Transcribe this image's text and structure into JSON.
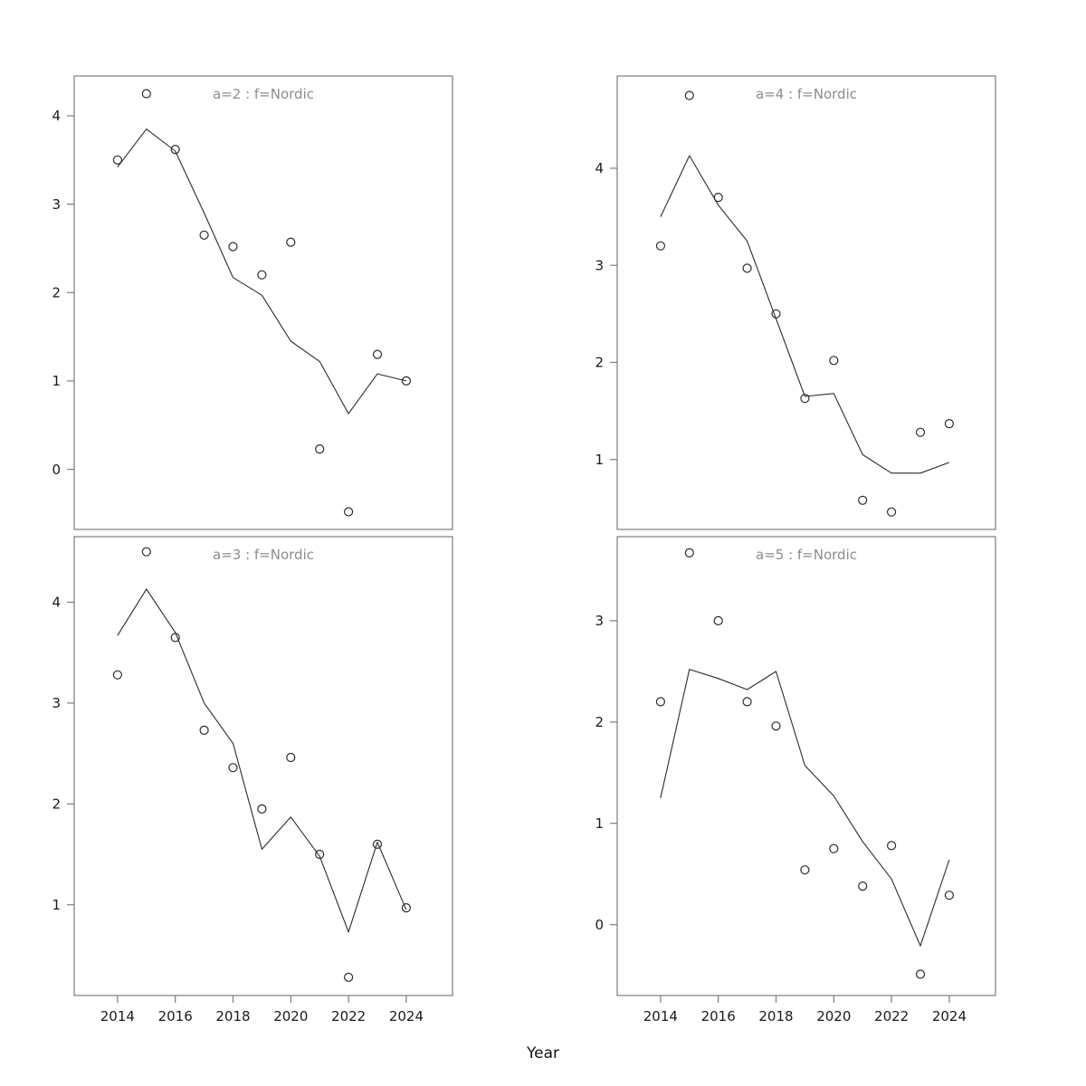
{
  "figure": {
    "xlabel": "Year",
    "x_ticks": [
      2014,
      2016,
      2018,
      2020,
      2022,
      2024
    ],
    "xlim": [
      2012.5,
      2025.6
    ]
  },
  "chart_data": [
    {
      "type": "scatter",
      "panel": "top-left",
      "title": "a=2  :  f=Nordic",
      "x": [
        2014,
        2015,
        2016,
        2017,
        2018,
        2019,
        2020,
        2021,
        2022,
        2023,
        2024
      ],
      "points": [
        3.5,
        4.25,
        3.62,
        2.65,
        2.52,
        2.2,
        2.57,
        0.23,
        -0.48,
        1.3,
        1.0
      ],
      "line": [
        3.42,
        3.85,
        3.6,
        2.9,
        2.17,
        1.97,
        1.45,
        1.22,
        0.63,
        1.08,
        1.0
      ],
      "ylim": [
        -0.68,
        4.45
      ],
      "yticks": [
        0,
        1,
        2,
        3,
        4
      ],
      "legend": "none",
      "grid": false
    },
    {
      "type": "scatter",
      "panel": "top-right",
      "title": "a=4  :  f=Nordic",
      "x": [
        2014,
        2015,
        2016,
        2017,
        2018,
        2019,
        2020,
        2021,
        2022,
        2023,
        2024
      ],
      "points": [
        3.2,
        4.75,
        3.7,
        2.97,
        2.5,
        1.63,
        2.02,
        0.58,
        0.46,
        1.28,
        1.37
      ],
      "line": [
        3.5,
        4.13,
        3.62,
        3.25,
        2.45,
        1.65,
        1.68,
        1.05,
        0.86,
        0.86,
        0.97
      ],
      "ylim": [
        0.28,
        4.95
      ],
      "yticks": [
        1,
        2,
        3,
        4
      ],
      "legend": "none",
      "grid": false
    },
    {
      "type": "scatter",
      "panel": "bottom-left",
      "title": "a=3  :  f=Nordic",
      "x": [
        2014,
        2015,
        2016,
        2017,
        2018,
        2019,
        2020,
        2021,
        2022,
        2023,
        2024
      ],
      "points": [
        3.28,
        4.5,
        3.65,
        2.73,
        2.36,
        1.95,
        2.46,
        1.5,
        0.28,
        1.6,
        0.97
      ],
      "line": [
        3.67,
        4.13,
        3.7,
        3.0,
        2.6,
        1.55,
        1.87,
        1.48,
        0.73,
        1.62,
        0.95
      ],
      "ylim": [
        0.1,
        4.65
      ],
      "yticks": [
        1,
        2,
        3,
        4
      ],
      "legend": "none",
      "grid": false
    },
    {
      "type": "scatter",
      "panel": "bottom-right",
      "title": "a=5  :  f=Nordic",
      "x": [
        2014,
        2015,
        2016,
        2017,
        2018,
        2019,
        2020,
        2021,
        2022,
        2023,
        2024
      ],
      "points": [
        2.2,
        3.67,
        3.0,
        2.2,
        1.96,
        0.54,
        0.75,
        0.38,
        0.78,
        -0.49,
        0.29
      ],
      "line": [
        1.25,
        2.52,
        2.43,
        2.32,
        2.5,
        1.57,
        1.27,
        0.82,
        0.45,
        -0.21,
        0.64
      ],
      "ylim": [
        -0.7,
        3.83
      ],
      "yticks": [
        0,
        1,
        2,
        3
      ],
      "legend": "none",
      "grid": false
    }
  ]
}
